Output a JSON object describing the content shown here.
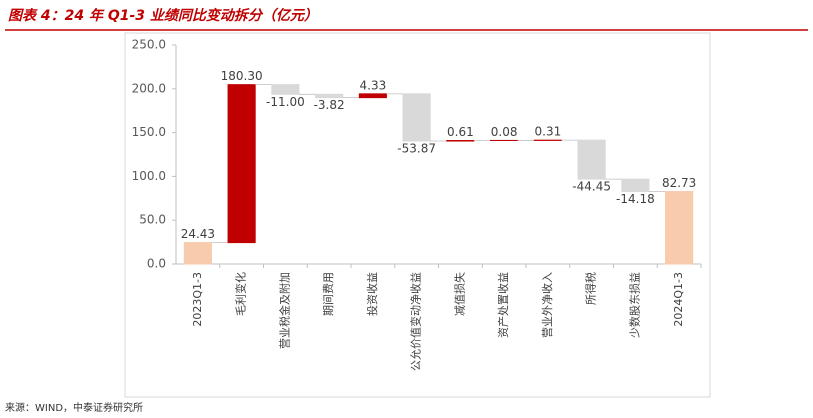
{
  "chart_data": {
    "type": "waterfall",
    "title": "图表 4：24 年 Q1-3 业绩同比变动拆分（亿元）",
    "source": "来源：WIND，中泰证券研究所",
    "categories": [
      "2023Q1-3",
      "毛利变化",
      "营业税金及附加",
      "期间费用",
      "投资收益",
      "公允价值变动净收益",
      "减值损失",
      "资产处置收益",
      "营业外净收入",
      "所得税",
      "少数股东损益",
      "2024Q1-3"
    ],
    "values": [
      24.43,
      180.3,
      -11.0,
      -3.82,
      4.33,
      -53.87,
      0.61,
      0.08,
      0.31,
      -44.45,
      -14.18,
      82.73
    ],
    "value_labels": [
      "24.43",
      "180.30",
      "-11.00",
      "-3.82",
      "4.33",
      "-53.87",
      "0.61",
      "0.08",
      "0.31",
      "-44.45",
      "-14.18",
      "82.73"
    ],
    "colors": {
      "total": "#f8cbad",
      "increase": "#c00000",
      "decrease": "#d9d9d9"
    },
    "ylim": [
      0,
      250
    ],
    "yticks": [
      {
        "value": 0,
        "label": "0.0"
      },
      {
        "value": 50,
        "label": "50.0"
      },
      {
        "value": 100,
        "label": "100.0"
      },
      {
        "value": 150,
        "label": "150.0"
      },
      {
        "value": 200,
        "label": "200.0"
      },
      {
        "value": 250,
        "label": "250.0"
      }
    ]
  }
}
